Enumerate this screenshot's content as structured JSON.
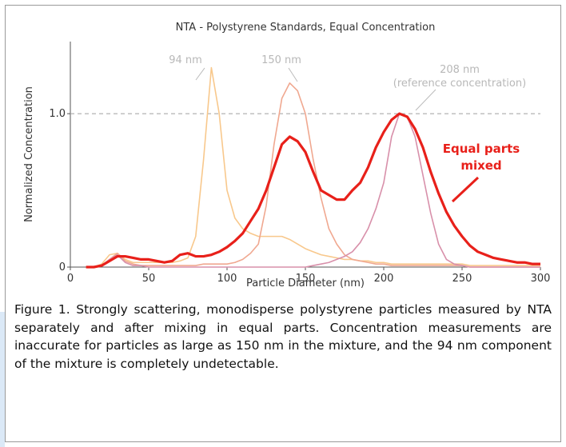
{
  "chart_data": {
    "type": "line",
    "title": "NTA - Polystyrene Standards, Equal Concentration",
    "x_label": "Particle Diameter (nm)",
    "y_label": "Normalized Concentration",
    "xlim": [
      0,
      300
    ],
    "ylim": [
      0,
      1.47
    ],
    "xticks": [
      0,
      50,
      100,
      150,
      200,
      250,
      300
    ],
    "yticks": [
      0,
      {
        "value": 1,
        "label": "1.0"
      }
    ],
    "reference_line": 1,
    "x": [
      10,
      15,
      20,
      25,
      30,
      35,
      40,
      45,
      50,
      55,
      60,
      65,
      70,
      75,
      80,
      85,
      90,
      95,
      100,
      105,
      110,
      115,
      120,
      125,
      130,
      135,
      140,
      145,
      150,
      155,
      160,
      165,
      170,
      175,
      180,
      185,
      190,
      195,
      200,
      205,
      210,
      215,
      220,
      225,
      230,
      235,
      240,
      245,
      250,
      255,
      260,
      265,
      270,
      275,
      280,
      285,
      290,
      295,
      300
    ],
    "series": [
      {
        "name": "94 nm",
        "color": "#f8c88c",
        "width": 1.6,
        "values": [
          0,
          0,
          0.02,
          0.08,
          0.09,
          0.05,
          0.03,
          0.03,
          0.03,
          0.03,
          0.03,
          0.03,
          0.04,
          0.06,
          0.2,
          0.7,
          1.3,
          1.0,
          0.5,
          0.32,
          0.25,
          0.22,
          0.2,
          0.2,
          0.2,
          0.2,
          0.18,
          0.15,
          0.12,
          0.1,
          0.08,
          0.07,
          0.06,
          0.05,
          0.05,
          0.04,
          0.04,
          0.03,
          0.03,
          0.02,
          0.02,
          0.02,
          0.02,
          0.02,
          0.02,
          0.02,
          0.02,
          0.02,
          0.02,
          0.01,
          0.01,
          0.01,
          0.01,
          0.01,
          0.01,
          0.01,
          0.01,
          0.01,
          0.01
        ]
      },
      {
        "name": "150 nm",
        "color": "#f0a890",
        "width": 1.6,
        "values": [
          0,
          0,
          0.01,
          0.05,
          0.09,
          0.04,
          0.02,
          0.01,
          0.01,
          0.01,
          0.01,
          0.01,
          0.01,
          0.01,
          0.01,
          0.02,
          0.02,
          0.02,
          0.02,
          0.03,
          0.05,
          0.09,
          0.15,
          0.4,
          0.8,
          1.1,
          1.2,
          1.15,
          1.0,
          0.7,
          0.45,
          0.25,
          0.15,
          0.08,
          0.05,
          0.04,
          0.03,
          0.02,
          0.02,
          0.01,
          0.01,
          0.01,
          0.01,
          0.01,
          0.01,
          0.01,
          0.01,
          0.01,
          0.01,
          0,
          0,
          0,
          0,
          0,
          0,
          0,
          0,
          0,
          0
        ]
      },
      {
        "name": "208 nm",
        "color": "#d890aa",
        "width": 1.6,
        "values": [
          0,
          0,
          0.01,
          0.05,
          0.08,
          0.03,
          0.01,
          0.01,
          0,
          0,
          0,
          0,
          0,
          0,
          0,
          0,
          0,
          0,
          0,
          0,
          0,
          0,
          0,
          0,
          0,
          0,
          0,
          0,
          0,
          0.01,
          0.02,
          0.03,
          0.05,
          0.07,
          0.1,
          0.16,
          0.25,
          0.38,
          0.55,
          0.85,
          1.0,
          0.98,
          0.85,
          0.6,
          0.35,
          0.15,
          0.05,
          0.02,
          0.01,
          0,
          0,
          0,
          0,
          0,
          0,
          0,
          0,
          0,
          0
        ]
      },
      {
        "name": "Equal parts mixed",
        "color": "#e8201a",
        "width": 3.2,
        "values": [
          0,
          0,
          0.01,
          0.04,
          0.07,
          0.07,
          0.06,
          0.05,
          0.05,
          0.04,
          0.03,
          0.04,
          0.08,
          0.09,
          0.07,
          0.07,
          0.08,
          0.1,
          0.13,
          0.17,
          0.22,
          0.3,
          0.38,
          0.5,
          0.65,
          0.8,
          0.85,
          0.82,
          0.75,
          0.62,
          0.5,
          0.47,
          0.44,
          0.44,
          0.5,
          0.55,
          0.65,
          0.78,
          0.88,
          0.96,
          1.0,
          0.98,
          0.9,
          0.78,
          0.62,
          0.48,
          0.36,
          0.27,
          0.2,
          0.14,
          0.1,
          0.08,
          0.06,
          0.05,
          0.04,
          0.03,
          0.03,
          0.02,
          0.02
        ]
      }
    ],
    "annotations": [
      {
        "lines": [
          "94 nm"
        ],
        "color": "#b8b8b8"
      },
      {
        "lines": [
          "150 nm"
        ],
        "color": "#b8b8b8"
      },
      {
        "lines": [
          "208 nm",
          "(reference concentration)"
        ],
        "color": "#b8b8b8"
      },
      {
        "lines": [
          "Equal parts",
          "mixed"
        ],
        "color": "#e8201a"
      }
    ],
    "caption": "Figure 1. Strongly scattering, monodisperse polystyrene particles measured by NTA separately and after mixing in equal parts. Concentration measurements are inaccurate for particles as large as 150 nm in the mixture, and the 94 nm component of the mixture is completely undetectable."
  }
}
